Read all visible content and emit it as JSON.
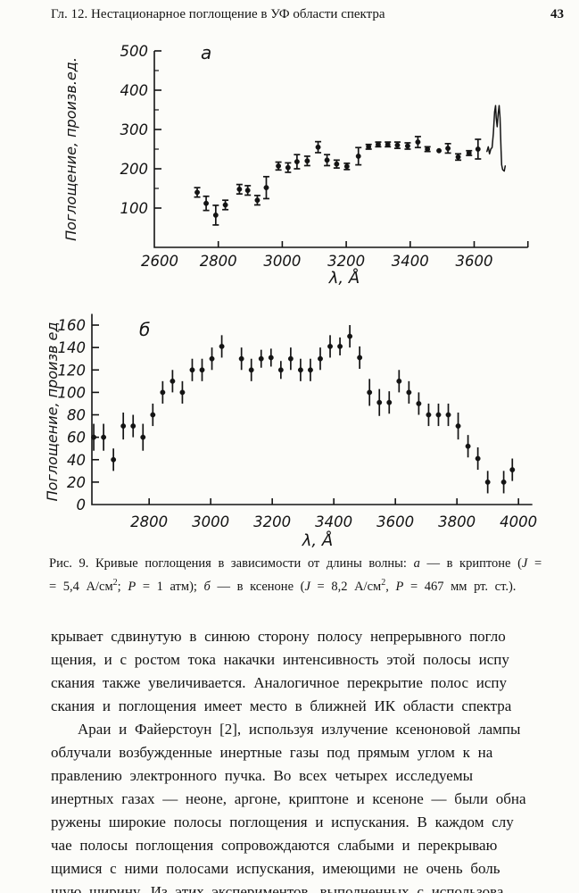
{
  "page": {
    "header": {
      "title": "Гл. 12. Нестационарное поглощение в УФ области спектра",
      "page_number": "43"
    }
  },
  "chart_data": [
    {
      "id": "a",
      "type": "scatter",
      "panel_label": "а",
      "xlabel": "λ, Å",
      "ylabel": "Поглощение, произв.ед.",
      "xlim": [
        2600,
        3768
      ],
      "ylim": [
        0,
        500
      ],
      "xticks": [
        2600,
        2800,
        3000,
        3200,
        3400,
        3600
      ],
      "yticks": [
        100,
        200,
        300,
        400,
        500
      ],
      "yminorticks": [
        150,
        250,
        350,
        450
      ],
      "grid": false,
      "legend": "none",
      "error_bar_caps": true,
      "points_format": "[wavelength_A, absorption, error]",
      "points": [
        [
          2734,
          140,
          12
        ],
        [
          2762,
          112,
          18
        ],
        [
          2792,
          82,
          25
        ],
        [
          2822,
          108,
          12
        ],
        [
          2866,
          148,
          12
        ],
        [
          2892,
          145,
          12
        ],
        [
          2922,
          120,
          12
        ],
        [
          2950,
          152,
          28
        ],
        [
          2988,
          207,
          10
        ],
        [
          3018,
          203,
          12
        ],
        [
          3046,
          218,
          18
        ],
        [
          3078,
          220,
          12
        ],
        [
          3112,
          255,
          14
        ],
        [
          3140,
          222,
          14
        ],
        [
          3170,
          212,
          10
        ],
        [
          3202,
          206,
          8
        ],
        [
          3238,
          232,
          22
        ],
        [
          3270,
          256,
          6
        ],
        [
          3300,
          262,
          6
        ],
        [
          3330,
          262,
          6
        ],
        [
          3360,
          260,
          8
        ],
        [
          3392,
          258,
          8
        ],
        [
          3424,
          268,
          14
        ],
        [
          3454,
          250,
          6
        ],
        [
          3490,
          246,
          0
        ],
        [
          3518,
          252,
          12
        ],
        [
          3550,
          230,
          8
        ],
        [
          3584,
          240,
          6
        ],
        [
          3612,
          250,
          25
        ]
      ],
      "emission_spike_curve": [
        [
          3640,
          244
        ],
        [
          3644,
          256
        ],
        [
          3648,
          238
        ],
        [
          3652,
          250
        ],
        [
          3656,
          254
        ],
        [
          3660,
          290
        ],
        [
          3664,
          345
        ],
        [
          3667,
          361
        ],
        [
          3669,
          330
        ],
        [
          3672,
          307
        ],
        [
          3675,
          340
        ],
        [
          3678,
          361
        ],
        [
          3681,
          330
        ],
        [
          3684,
          250
        ],
        [
          3686,
          210
        ],
        [
          3689,
          198
        ],
        [
          3694,
          194
        ],
        [
          3697,
          207
        ]
      ]
    },
    {
      "id": "b",
      "type": "scatter",
      "panel_label": "б",
      "xlabel": "λ, Å",
      "ylabel": "Поглощение, произв ед",
      "xlim": [
        2614,
        4045
      ],
      "ylim": [
        0,
        170
      ],
      "xticks": [
        2800,
        3000,
        3200,
        3400,
        3600,
        3800,
        4000
      ],
      "yticks": [
        0,
        20,
        40,
        60,
        80,
        100,
        120,
        140,
        160
      ],
      "yminorticks": [],
      "grid": false,
      "legend": "none",
      "error_bar_caps": false,
      "points_format": "[wavelength_A, absorption, error]",
      "points": [
        [
          2620,
          60,
          12
        ],
        [
          2652,
          60,
          12
        ],
        [
          2684,
          40,
          10
        ],
        [
          2716,
          70,
          12
        ],
        [
          2748,
          70,
          10
        ],
        [
          2780,
          60,
          12
        ],
        [
          2812,
          80,
          10
        ],
        [
          2844,
          100,
          10
        ],
        [
          2876,
          110,
          10
        ],
        [
          2908,
          100,
          10
        ],
        [
          2940,
          120,
          10
        ],
        [
          2972,
          120,
          10
        ],
        [
          3004,
          130,
          10
        ],
        [
          3036,
          141,
          10
        ],
        [
          3100,
          130,
          10
        ],
        [
          3132,
          120,
          10
        ],
        [
          3164,
          130,
          8
        ],
        [
          3196,
          131,
          8
        ],
        [
          3228,
          120,
          8
        ],
        [
          3260,
          130,
          10
        ],
        [
          3292,
          120,
          10
        ],
        [
          3324,
          120,
          10
        ],
        [
          3356,
          130,
          10
        ],
        [
          3388,
          141,
          10
        ],
        [
          3420,
          141,
          8
        ],
        [
          3452,
          150,
          10
        ],
        [
          3484,
          131,
          10
        ],
        [
          3516,
          100,
          12
        ],
        [
          3548,
          91,
          12
        ],
        [
          3580,
          91,
          10
        ],
        [
          3612,
          110,
          10
        ],
        [
          3644,
          100,
          10
        ],
        [
          3676,
          90,
          10
        ],
        [
          3708,
          80,
          10
        ],
        [
          3740,
          80,
          10
        ],
        [
          3772,
          80,
          10
        ],
        [
          3804,
          70,
          12
        ],
        [
          3836,
          52,
          10
        ],
        [
          3868,
          41,
          10
        ],
        [
          3900,
          20,
          10
        ],
        [
          3952,
          20,
          10
        ],
        [
          3980,
          31,
          10
        ]
      ]
    }
  ],
  "caption": {
    "lines": [
      [
        {
          "t": "Рис. 9. Кривые поглощения в зависимости от длины волны: "
        },
        {
          "t": "а",
          "style": "it"
        },
        {
          "t": " — в криптоне ("
        },
        {
          "t": "J",
          "style": "it"
        },
        {
          "t": " ="
        }
      ],
      [
        {
          "t": "= 5,4 А/см"
        },
        {
          "t": "2",
          "style": "sup"
        },
        {
          "t": "; "
        },
        {
          "t": "Р",
          "style": "it"
        },
        {
          "t": " = 1 атм); "
        },
        {
          "t": "б",
          "style": "it"
        },
        {
          "t": " — в ксеноне ("
        },
        {
          "t": "J",
          "style": "it"
        },
        {
          "t": " = 8,2 А/см"
        },
        {
          "t": "2",
          "style": "sup"
        },
        {
          "t": ", "
        },
        {
          "t": "Р",
          "style": "it"
        },
        {
          "t": " = 467 мм рт. ст.)."
        }
      ]
    ]
  },
  "body": {
    "lines": [
      {
        "text": "крывает сдвинутую в синюю сторону полосу непрерывного погло",
        "indent": false
      },
      {
        "text": "щения, и с ростом тока накачки интенсивность этой полосы испу",
        "indent": false
      },
      {
        "text": "скания также увеличивается. Аналогичное перекрытие полос испу",
        "indent": false
      },
      {
        "text": "скания и поглощения имеет место в ближней ИК области спектра",
        "indent": false
      },
      {
        "text": "Араи и Файерстоун [2], используя излучение ксеноновой лампы",
        "indent": true
      },
      {
        "text": "облучали возбужденные инертные газы под прямым углом к на",
        "indent": false
      },
      {
        "text": "правлению электронного пучка. Во всех четырех исследуемы",
        "indent": false
      },
      {
        "text": "инертных газах — неоне, аргоне, криптоне и ксеноне — были обна",
        "indent": false
      },
      {
        "text": "ружены широкие полосы поглощения и испускания. В каждом слу",
        "indent": false
      },
      {
        "text": "чае полосы поглощения сопровождаются слабыми и перекрываю",
        "indent": false
      },
      {
        "text": "щимися с ними полосами испускания, имеющими не очень боль",
        "indent": false
      },
      {
        "text": "шую ширину. Из этих экспериментов, выполненных с использова",
        "indent": false
      }
    ]
  },
  "colors": {
    "ink": "#141414",
    "paper": "#fcfcf9"
  }
}
